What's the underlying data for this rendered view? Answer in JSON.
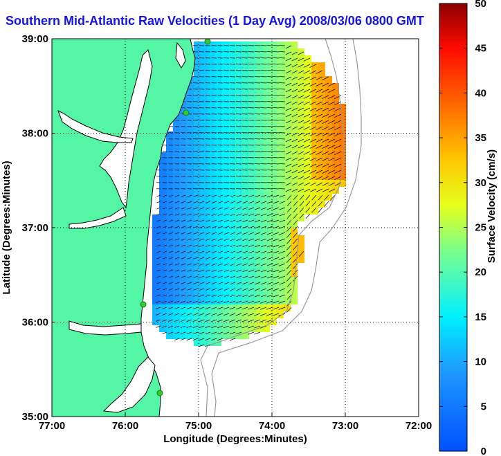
{
  "title": "Southern Mid-Atlantic Raw Velocities (1 Day Avg) 2008/03/06 0800 GMT",
  "map": {
    "xlabel": "Longitude (Degrees:Minutes)",
    "ylabel": "Latitude (Degrees:Minutes)",
    "x_ticks": [
      "77:00",
      "76:00",
      "75:00",
      "74:00",
      "73:00",
      "72:00"
    ],
    "y_ticks": [
      "39:00",
      "38:00",
      "37:00",
      "36:00",
      "35:00"
    ],
    "lon_range": [
      -77,
      -72
    ],
    "lat_range": [
      35,
      39
    ],
    "grid": "dotted"
  },
  "colorbar": {
    "label": "Surface Velocity (cm/s)",
    "min": 0,
    "max": 50,
    "ticks": [
      "0",
      "5",
      "10",
      "15",
      "20",
      "25",
      "30",
      "35",
      "40",
      "45",
      "50"
    ],
    "colormap": "jet"
  },
  "colors": {
    "land": "#55f5a6",
    "coast_line": "#000000",
    "title": "#1414e6",
    "station_marker": "#33cc33"
  }
}
